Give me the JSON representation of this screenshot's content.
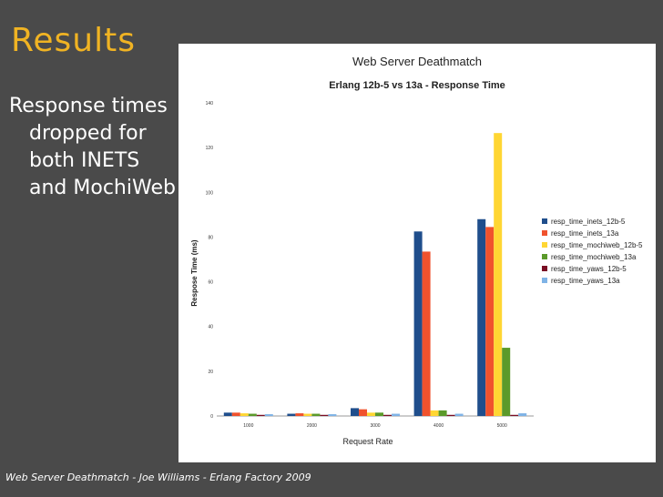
{
  "slide": {
    "title": "Results",
    "bullet_lines": [
      "Response times",
      "dropped for",
      "both INETS",
      "and MochiWeb"
    ],
    "footer": "Web Server Deathmatch - Joe Williams - Erlang Factory 2009"
  },
  "chart_data": {
    "type": "bar",
    "title": "Web Server Deathmatch",
    "subtitle": "Erlang 12b-5 vs 13a - Response Time",
    "xlabel": "Request Rate",
    "ylabel": "Respose Time (ms)",
    "categories": [
      "1000",
      "2000",
      "3000",
      "4000",
      "5000"
    ],
    "ylim": [
      0,
      140
    ],
    "yticks": [
      0,
      20,
      40,
      60,
      80,
      100,
      120,
      140
    ],
    "grid": false,
    "legend_position": "right",
    "series": [
      {
        "name": "resp_time_inets_12b-5",
        "color": "#1f4e8c",
        "values": [
          1.5,
          1.0,
          3.5,
          82.5,
          88.0
        ]
      },
      {
        "name": "resp_time_inets_13a",
        "color": "#f0522d",
        "values": [
          1.5,
          1.2,
          3.0,
          73.5,
          84.5
        ]
      },
      {
        "name": "resp_time_mochiweb_12b-5",
        "color": "#ffd633",
        "values": [
          1.2,
          1.0,
          1.5,
          2.5,
          126.5
        ]
      },
      {
        "name": "resp_time_mochiweb_13a",
        "color": "#5b9a2a",
        "values": [
          1.0,
          1.0,
          1.5,
          2.5,
          30.5
        ]
      },
      {
        "name": "resp_time_yaws_12b-5",
        "color": "#7a0e24",
        "values": [
          0.5,
          0.5,
          0.5,
          0.5,
          0.5
        ]
      },
      {
        "name": "resp_time_yaws_13a",
        "color": "#7fb3e6",
        "values": [
          0.8,
          0.8,
          1.0,
          1.0,
          1.2
        ]
      }
    ]
  }
}
